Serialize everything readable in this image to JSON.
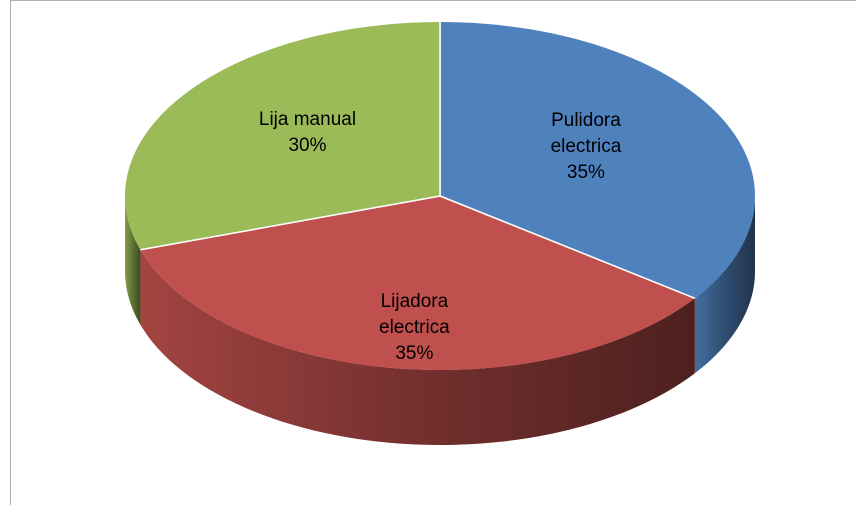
{
  "chart_data": {
    "type": "pie",
    "three_d": true,
    "categories": [
      "Pulidora electrica",
      "Lijadora electrica",
      "Lija manual"
    ],
    "values": [
      35,
      35,
      30
    ],
    "value_labels": [
      "35%",
      "35%",
      "30%"
    ],
    "colors": [
      "#4f81bd",
      "#c0504d",
      "#9bbb59"
    ]
  }
}
